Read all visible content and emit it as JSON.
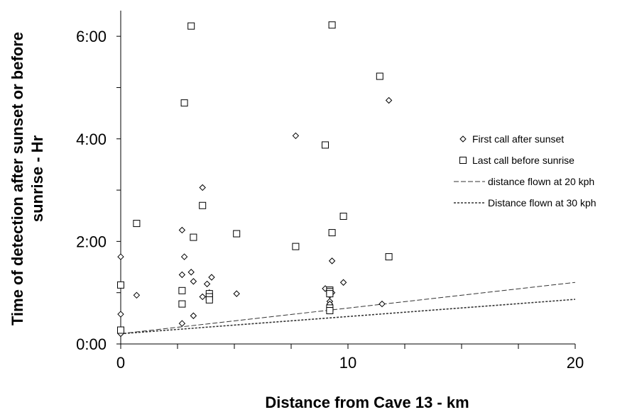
{
  "chart_data": {
    "type": "scatter",
    "xlabel": "Distance from Cave 13  -  km",
    "ylabel_line1": "Time of detection after sunset or before",
    "ylabel_line2": "sunrise  -  Hr",
    "xlim": [
      0,
      20
    ],
    "ylim": [
      0,
      6.5
    ],
    "x_ticks": [
      0,
      10,
      20
    ],
    "x_tick_labels": [
      "0",
      "10",
      "20"
    ],
    "y_ticks": [
      0,
      2,
      4,
      6
    ],
    "y_tick_labels": [
      "0:00",
      "2:00",
      "4:00",
      "6:00"
    ],
    "grid": false,
    "legend_position": "right",
    "series": [
      {
        "name": "First call after sunset",
        "marker": "diamond",
        "points": [
          [
            0,
            1.7
          ],
          [
            0,
            0.58
          ],
          [
            0,
            0.2
          ],
          [
            0.7,
            0.95
          ],
          [
            2.7,
            2.22
          ],
          [
            2.8,
            1.7
          ],
          [
            2.7,
            1.35
          ],
          [
            3.1,
            1.4
          ],
          [
            3.2,
            1.22
          ],
          [
            2.7,
            0.4
          ],
          [
            3.2,
            0.55
          ],
          [
            3.6,
            3.05
          ],
          [
            3.8,
            1.17
          ],
          [
            4.0,
            1.3
          ],
          [
            3.9,
            1.0
          ],
          [
            3.6,
            0.92
          ],
          [
            5.1,
            0.98
          ],
          [
            7.7,
            4.06
          ],
          [
            9.0,
            1.08
          ],
          [
            9.2,
            1.0
          ],
          [
            9.2,
            0.95
          ],
          [
            9.2,
            0.83
          ],
          [
            9.2,
            0.78
          ],
          [
            9.3,
            1.0
          ],
          [
            9.3,
            1.62
          ],
          [
            9.8,
            1.2
          ],
          [
            11.5,
            0.78
          ],
          [
            11.8,
            4.75
          ]
        ]
      },
      {
        "name": "Last call before sunrise",
        "marker": "square",
        "points": [
          [
            0,
            1.15
          ],
          [
            0,
            0.27
          ],
          [
            0.7,
            2.35
          ],
          [
            2.7,
            1.04
          ],
          [
            2.7,
            0.78
          ],
          [
            2.8,
            4.7
          ],
          [
            3.1,
            6.2
          ],
          [
            3.2,
            2.08
          ],
          [
            3.6,
            2.7
          ],
          [
            3.9,
            0.98
          ],
          [
            3.9,
            0.92
          ],
          [
            3.9,
            0.86
          ],
          [
            5.1,
            2.15
          ],
          [
            7.7,
            1.9
          ],
          [
            9.0,
            3.88
          ],
          [
            9.2,
            1.05
          ],
          [
            9.2,
            1.02
          ],
          [
            9.2,
            0.98
          ],
          [
            9.2,
            0.7
          ],
          [
            9.2,
            0.65
          ],
          [
            9.3,
            6.22
          ],
          [
            9.3,
            2.17
          ],
          [
            9.8,
            2.49
          ],
          [
            11.4,
            5.22
          ],
          [
            11.8,
            1.7
          ]
        ]
      },
      {
        "name": "distance flown at 20 kph",
        "type": "line",
        "dash": "long",
        "points": [
          [
            0,
            0.2
          ],
          [
            20,
            1.2
          ]
        ]
      },
      {
        "name": "Distance flown at 30 kph",
        "type": "line",
        "dash": "short",
        "points": [
          [
            0,
            0.2
          ],
          [
            20,
            0.87
          ]
        ]
      }
    ]
  }
}
